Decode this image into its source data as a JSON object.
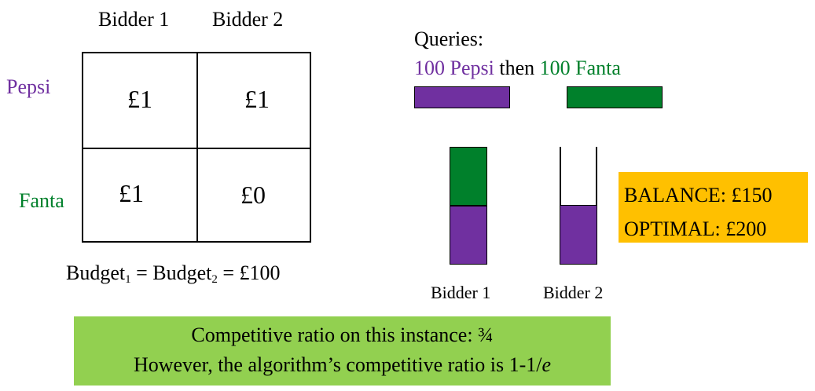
{
  "matrix": {
    "columns": [
      "Bidder 1",
      "Bidder 2"
    ],
    "rows": [
      {
        "label": "Pepsi",
        "color": "#7030a0",
        "values": [
          "£1",
          "£1"
        ]
      },
      {
        "label": "Fanta",
        "color": "#00802b",
        "values": [
          "£1",
          "£0"
        ]
      }
    ]
  },
  "budget": {
    "word": "Budget",
    "sub1": "1",
    "sub2": "2",
    "rest": " = £100"
  },
  "queries": {
    "title": "Queries:",
    "pepsi": "100 Pepsi",
    "then": " then ",
    "fanta": "100 Fanta"
  },
  "allocation": {
    "bidder1": {
      "label": "Bidder 1",
      "pepsi_fraction": 0.5,
      "fanta_fraction": 0.5
    },
    "bidder2": {
      "label": "Bidder 2",
      "pepsi_fraction": 0.5,
      "fanta_fraction": 0.0
    }
  },
  "results": {
    "balance": "BALANCE: £150",
    "optimal": "OPTIMAL: £200"
  },
  "summary": {
    "line1": "Competitive ratio on this instance: ¾",
    "line2_prefix": "However, the algorithm’s competitive ratio is 1-1/",
    "line2_italic": "e"
  },
  "colors": {
    "purple": "#7030a0",
    "green": "#00802b",
    "orange": "#ffc000",
    "light_green": "#92d050"
  }
}
